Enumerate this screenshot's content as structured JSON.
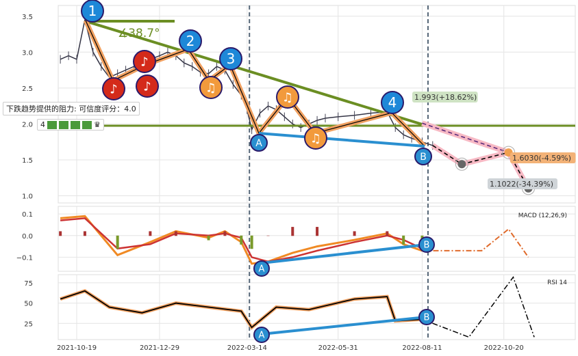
{
  "chart_data": [
    {
      "type": "candlestick-line",
      "panel": "price",
      "yticks": [
        "3.5",
        "3.0",
        "2.5",
        "2.0",
        "1.5",
        "1.0"
      ],
      "ylim": [
        0.9,
        3.65
      ],
      "xticks": [
        "2021-10-19",
        "2021-12-29",
        "2022-03-14",
        "2022-05-31",
        "2022-08-11",
        "2022-10-20"
      ],
      "series": [
        {
          "x": [
            "2021-10-05",
            "2021-10-12",
            "2021-10-19",
            "2021-10-26",
            "2021-11-02",
            "2021-11-09",
            "2021-11-16",
            "2021-11-23",
            "2021-11-30",
            "2021-12-07",
            "2021-12-14",
            "2021-12-21",
            "2021-12-29",
            "2022-01-05",
            "2022-01-12",
            "2022-01-19",
            "2022-01-26",
            "2022-02-02",
            "2022-02-09",
            "2022-02-16",
            "2022-02-23",
            "2022-03-02",
            "2022-03-09",
            "2022-03-14",
            "2022-03-18",
            "2022-03-25",
            "2022-04-01",
            "2022-04-08",
            "2022-04-15",
            "2022-04-22",
            "2022-04-29",
            "2022-05-06",
            "2022-05-13",
            "2022-05-20",
            "2022-05-31",
            "2022-06-14",
            "2022-06-28",
            "2022-07-12",
            "2022-07-19",
            "2022-07-26",
            "2022-08-02",
            "2022-08-11",
            "2022-08-20"
          ],
          "y": [
            2.9,
            2.95,
            2.9,
            3.45,
            3.0,
            2.8,
            2.65,
            2.7,
            2.75,
            2.8,
            2.85,
            2.9,
            2.95,
            3.0,
            2.95,
            2.85,
            2.8,
            2.72,
            2.7,
            2.8,
            2.75,
            2.55,
            2.4,
            2.2,
            1.92,
            2.15,
            2.25,
            2.2,
            2.1,
            2.0,
            1.95,
            2.0,
            2.05,
            2.08,
            2.1,
            2.12,
            2.15,
            2.17,
            1.95,
            1.85,
            1.8,
            1.75,
            1.7
          ]
        }
      ],
      "projection": {
        "x": [
          "2022-08-20",
          "2022-09-14",
          "2022-10-24",
          "2022-11-10"
        ],
        "y": [
          1.7,
          1.44,
          1.603,
          1.1022
        ]
      },
      "projection_upper": {
        "x": [
          "2022-08-11",
          "2022-10-24"
        ],
        "y": [
          2.01,
          1.603
        ]
      },
      "annotations": {
        "angle": "∡38.7°",
        "target_up": "1.993(+18.62%)",
        "target_mid": "1.6030(-4.59%)",
        "target_low": "1.1022(-34.39%)",
        "waves": [
          "1",
          "2",
          "3",
          "4"
        ],
        "points": [
          "A",
          "B"
        ],
        "resistance_text": "下跌趋势提供的阻力: 可信度评分：4.0",
        "score_label": "4"
      },
      "vlines": [
        "2022-03-16",
        "2022-08-16"
      ],
      "colors": {
        "trend": "#6b8e23",
        "wave": "#1e88d8",
        "support": "#2a8fd0",
        "zig": "#f0a060",
        "proj": "#f7b9c4"
      }
    },
    {
      "type": "line",
      "panel": "macd",
      "label": "MACD (12,26,9)",
      "yticks": [
        "0.1",
        "0.0",
        "−0.1"
      ],
      "ylim": [
        -0.165,
        0.135
      ],
      "x": [
        "2021-10-05",
        "2021-10-26",
        "2021-11-23",
        "2021-12-21",
        "2022-01-12",
        "2022-02-09",
        "2022-02-23",
        "2022-03-09",
        "2022-03-18",
        "2022-04-01",
        "2022-04-22",
        "2022-05-13",
        "2022-06-14",
        "2022-07-12",
        "2022-07-26",
        "2022-08-11"
      ],
      "macd": [
        0.08,
        0.09,
        -0.09,
        -0.03,
        0.02,
        -0.01,
        0.02,
        -0.03,
        -0.13,
        -0.12,
        -0.08,
        -0.05,
        -0.02,
        0.01,
        -0.04,
        -0.07
      ],
      "signal": [
        0.07,
        0.08,
        -0.06,
        -0.04,
        0.01,
        0.0,
        0.01,
        -0.01,
        -0.1,
        -0.12,
        -0.1,
        -0.07,
        -0.03,
        0.0,
        -0.02,
        -0.06
      ],
      "projection": {
        "x": [
          "2022-08-11",
          "2022-10-01",
          "2022-10-24",
          "2022-11-10"
        ],
        "y": [
          -0.07,
          -0.07,
          0.03,
          -0.1
        ]
      }
    },
    {
      "type": "line",
      "panel": "rsi",
      "label": "RSI 14",
      "yticks": [
        "75",
        "50",
        "25"
      ],
      "ylim": [
        5,
        85
      ],
      "x": [
        "2021-10-05",
        "2021-10-26",
        "2021-11-16",
        "2021-12-14",
        "2022-01-12",
        "2022-02-09",
        "2022-03-09",
        "2022-03-18",
        "2022-04-08",
        "2022-05-06",
        "2022-06-14",
        "2022-07-12",
        "2022-07-19",
        "2022-08-11"
      ],
      "y": [
        55,
        65,
        45,
        38,
        50,
        45,
        40,
        20,
        45,
        42,
        55,
        58,
        28,
        30
      ],
      "projection": {
        "x": [
          "2022-08-11",
          "2022-09-20",
          "2022-10-28",
          "2022-11-15"
        ],
        "y": [
          30,
          8,
          82,
          8
        ]
      }
    }
  ]
}
